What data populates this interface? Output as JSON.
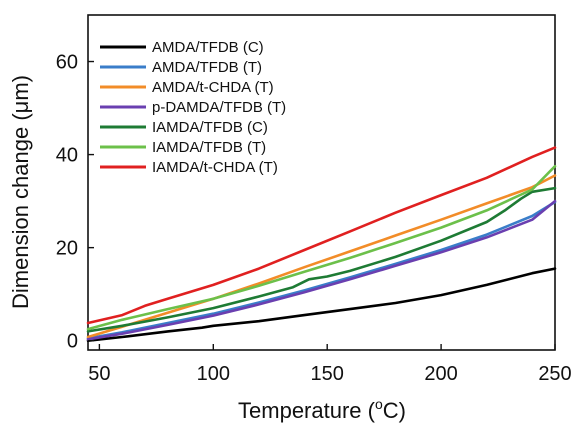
{
  "chart_data": {
    "type": "line",
    "xlabel": "Temperature (",
    "xlabel_sup": "o",
    "xlabel_tail": "C)",
    "ylabel": "Dimension change (μm)",
    "xlim": [
      45,
      250
    ],
    "ylim": [
      -2,
      70
    ],
    "xticks": [
      50,
      100,
      150,
      200,
      250
    ],
    "yticks": [
      0,
      20,
      40,
      60
    ],
    "grid": false,
    "legend_position": "top-left",
    "series": [
      {
        "name": "AMDA/TFDB (C)",
        "color": "#000000",
        "x": [
          45,
          60,
          80,
          95,
          100,
          120,
          140,
          160,
          180,
          200,
          220,
          240,
          250
        ],
        "y": [
          0.0,
          0.8,
          2.0,
          2.8,
          3.2,
          4.2,
          5.5,
          6.8,
          8.1,
          9.8,
          12.0,
          14.5,
          15.5
        ]
      },
      {
        "name": "AMDA/TFDB (T)",
        "color": "#3a7dc9",
        "x": [
          45,
          60,
          80,
          100,
          120,
          140,
          160,
          180,
          200,
          220,
          240,
          250
        ],
        "y": [
          0.5,
          1.8,
          3.8,
          5.8,
          8.2,
          10.8,
          13.6,
          16.5,
          19.5,
          22.8,
          26.8,
          29.8
        ]
      },
      {
        "name": "AMDA/t-CHDA (T)",
        "color": "#f28c28",
        "x": [
          45,
          60,
          80,
          100,
          120,
          140,
          160,
          180,
          200,
          220,
          240,
          250
        ],
        "y": [
          0.8,
          3.0,
          6.0,
          9.0,
          12.3,
          15.8,
          19.2,
          22.6,
          26.0,
          29.5,
          33.0,
          35.5
        ]
      },
      {
        "name": "p-DAMDA/TFDB (T)",
        "color": "#6a3fb0",
        "x": [
          45,
          60,
          80,
          100,
          120,
          140,
          160,
          180,
          200,
          220,
          240,
          250
        ],
        "y": [
          0.3,
          1.5,
          3.4,
          5.4,
          7.8,
          10.4,
          13.2,
          16.1,
          19.0,
          22.2,
          26.0,
          30.0
        ]
      },
      {
        "name": "IAMDA/TFDB (C)",
        "color": "#1e7b34",
        "x": [
          45,
          60,
          80,
          100,
          120,
          135,
          142,
          150,
          160,
          180,
          200,
          220,
          228,
          235,
          240,
          250
        ],
        "y": [
          2.0,
          3.2,
          5.0,
          7.0,
          9.5,
          11.5,
          13.2,
          13.8,
          15.0,
          18.0,
          21.5,
          25.5,
          28.0,
          30.5,
          32.0,
          32.8
        ]
      },
      {
        "name": "IAMDA/TFDB (T)",
        "color": "#6cc04a",
        "x": [
          45,
          60,
          80,
          100,
          120,
          140,
          160,
          180,
          200,
          220,
          240,
          250
        ],
        "y": [
          2.5,
          4.5,
          6.8,
          9.0,
          11.8,
          14.8,
          17.8,
          21.0,
          24.3,
          28.0,
          32.5,
          37.5
        ]
      },
      {
        "name": "IAMDA/t-CHDA (T)",
        "color": "#e02020",
        "x": [
          45,
          60,
          70,
          80,
          100,
          120,
          140,
          160,
          180,
          200,
          220,
          240,
          250
        ],
        "y": [
          3.8,
          5.5,
          7.5,
          9.0,
          12.0,
          15.5,
          19.5,
          23.5,
          27.5,
          31.3,
          35.0,
          39.5,
          41.5
        ]
      }
    ]
  }
}
